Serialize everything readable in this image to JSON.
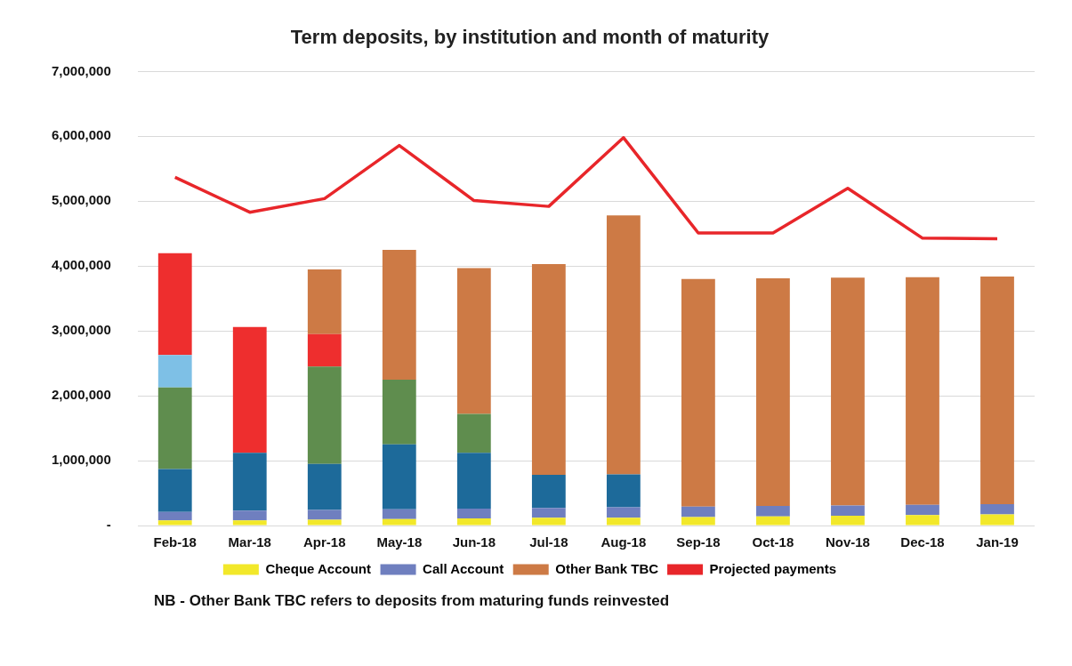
{
  "chart_data": {
    "type": "bar",
    "title": "Term deposits, by institution and month of maturity",
    "categories": [
      "Feb-18",
      "Mar-18",
      "Apr-18",
      "May-18",
      "Jun-18",
      "Jul-18",
      "Aug-18",
      "Sep-18",
      "Oct-18",
      "Nov-18",
      "Dec-18",
      "Jan-19"
    ],
    "stacked": true,
    "ylim": [
      0,
      7000000
    ],
    "yticks": [
      {
        "value": 0,
        "label": "-"
      },
      {
        "value": 1000000,
        "label": "1,000,000"
      },
      {
        "value": 2000000,
        "label": "2,000,000"
      },
      {
        "value": 3000000,
        "label": "3,000,000"
      },
      {
        "value": 4000000,
        "label": "4,000,000"
      },
      {
        "value": 5000000,
        "label": "5,000,000"
      },
      {
        "value": 6000000,
        "label": "6,000,000"
      },
      {
        "value": 7000000,
        "label": "7,000,000"
      }
    ],
    "grid": "y",
    "legend": "bottom",
    "series": [
      {
        "name": "Cheque Account",
        "color": "#f2e82a",
        "values": [
          80000,
          80000,
          90000,
          100000,
          110000,
          120000,
          120000,
          130000,
          140000,
          150000,
          160000,
          170000
        ]
      },
      {
        "name": "Call Account",
        "color": "#6f7fbf",
        "values": [
          130000,
          150000,
          150000,
          150000,
          150000,
          150000,
          160000,
          160000,
          160000,
          160000,
          160000,
          160000
        ]
      },
      {
        "color": "#1d6a9a",
        "values": [
          660000,
          890000,
          710000,
          1000000,
          860000,
          510000,
          510000,
          null,
          null,
          null,
          null,
          null
        ]
      },
      {
        "color": "#5f8d4e",
        "values": [
          1260000,
          null,
          1500000,
          1000000,
          600000,
          null,
          null,
          null,
          null,
          null,
          null,
          null
        ]
      },
      {
        "color": "#7ec0e6",
        "values": [
          500000,
          null,
          null,
          null,
          null,
          null,
          null,
          null,
          null,
          null,
          null,
          null
        ]
      },
      {
        "color": "#ee2e2e",
        "values": [
          1570000,
          1940000,
          500000,
          null,
          null,
          null,
          null,
          null,
          null,
          null,
          null,
          null
        ]
      },
      {
        "name": "Other Bank TBC",
        "color": "#cd7a45",
        "values": [
          null,
          null,
          1000000,
          2000000,
          2250000,
          3250000,
          3990000,
          3510000,
          3510000,
          3510000,
          3510000,
          3510000
        ]
      },
      {
        "name": "Projected payments",
        "type": "line",
        "color": "#e8262a",
        "marker": "none",
        "values": [
          5370000,
          4830000,
          5040000,
          5860000,
          5010000,
          4920000,
          5980000,
          4510000,
          4510000,
          5200000,
          4430000,
          4420000
        ]
      }
    ],
    "annotations": [
      "NB - Other Bank TBC refers to deposits from maturing funds reinvested"
    ]
  }
}
